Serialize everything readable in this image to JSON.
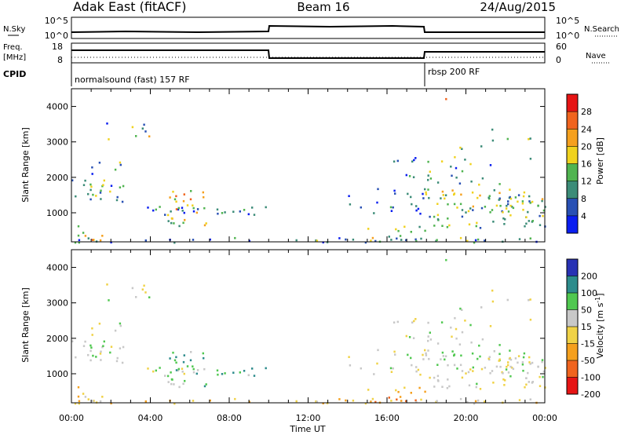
{
  "header": {
    "title": "Adak East (fitACF)",
    "beam": "Beam 16",
    "date": "24/Aug/2015"
  },
  "panels": {
    "nsky_label": "N.Sky",
    "nsearch_label": "N.Search",
    "freq_label_1": "Freq.",
    "freq_label_2": "[MHz]",
    "nave_label": "Nave",
    "cpid_label": "CPID",
    "nsky_ticks": [
      "10^5",
      "10^0"
    ],
    "nsearch_ticks": [
      "10^5",
      "10^0"
    ],
    "freq_ticks": [
      "18",
      "8"
    ],
    "nave_ticks": [
      "60",
      "0"
    ],
    "cpid_segments": [
      "normalsound (fast) 157 RF",
      "rbsp 200 RF"
    ]
  },
  "colors": {
    "power_scale": [
      "#0a1ef0",
      "#2850b4",
      "#3c8c78",
      "#50b450",
      "#f0d21e",
      "#f5a01e",
      "#f0641e",
      "#e61414"
    ],
    "velocity_scale": [
      "#e61414",
      "#f0641e",
      "#f5a01e",
      "#f0d246",
      "#c8c8c8",
      "#50c850",
      "#2d8c8c",
      "#2832b4"
    ],
    "power_legend_ticks": [
      "28",
      "24",
      "20",
      "16",
      "12",
      "8",
      "4"
    ],
    "velocity_legend_ticks": [
      "200",
      "100",
      "50",
      "15",
      "-15",
      "-50",
      "-100",
      "-200"
    ]
  },
  "chart_data": [
    {
      "type": "heatmap",
      "title": "Power",
      "ylabel": "Slant Range [km]",
      "colorbar_label": "Power [dB]",
      "ylim": [
        180,
        4500
      ],
      "xlim": [
        "00:00",
        "00:00"
      ],
      "y_ticks": [
        1000,
        2000,
        3000,
        4000
      ],
      "x_tick_labels": [
        "00:00",
        "04:00",
        "08:00",
        "12:00",
        "16:00",
        "20:00",
        "00:00"
      ],
      "legend_ticks": [
        4,
        8,
        12,
        16,
        20,
        24,
        28
      ]
    },
    {
      "type": "heatmap",
      "title": "Velocity",
      "ylabel": "Slant Range [km]",
      "colorbar_label": "Velocity [m s^-1]",
      "xlabel": "Time UT",
      "ylim": [
        180,
        4500
      ],
      "y_ticks": [
        1000,
        2000,
        3000,
        4000
      ],
      "x_tick_labels": [
        "00:00",
        "04:00",
        "08:00",
        "12:00",
        "16:00",
        "20:00",
        "00:00"
      ],
      "legend_ticks": [
        -200,
        -100,
        -50,
        -15,
        15,
        50,
        100,
        200
      ]
    }
  ]
}
